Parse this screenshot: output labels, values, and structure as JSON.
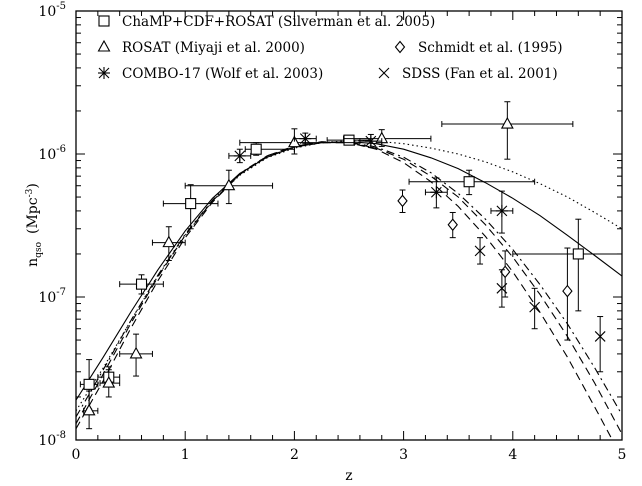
{
  "chart_data": {
    "type": "scatter",
    "title": "",
    "xlabel": "z",
    "ylabel": "n",
    "ylabel_sub": "qso",
    "ylabel_unit": "(Mpc",
    "ylabel_unit_exp": "-3",
    "ylabel_unit_close": ")",
    "x_scale": "linear",
    "y_scale": "log",
    "xlim": [
      0,
      5
    ],
    "ylim": [
      1e-08,
      1e-05
    ],
    "x_ticks": [
      "0",
      "1",
      "2",
      "3",
      "4",
      "5"
    ],
    "y_ticks": [
      {
        "base": "10",
        "exp": "-8",
        "value": 1e-08
      },
      {
        "base": "10",
        "exp": "-7",
        "value": 1e-07
      },
      {
        "base": "10",
        "exp": "-6",
        "value": 1e-06
      },
      {
        "base": "10",
        "exp": "-5",
        "value": 1e-05
      }
    ],
    "grid": false,
    "legend_position": "top",
    "series": [
      {
        "name": "ChaMP+CDF+ROSAT (Silverman et al. 2005)",
        "marker": "square",
        "points": [
          {
            "x": 0.12,
            "y": 2.45e-08,
            "xerr": [
              0.08,
              0.08
            ],
            "yerr": [
              8e-09,
              1.2e-08
            ]
          },
          {
            "x": 0.3,
            "y": 2.75e-08,
            "xerr": [
              0.1,
              0.1
            ],
            "yerr": [
              4e-09,
              5e-09
            ]
          },
          {
            "x": 0.6,
            "y": 1.23e-07,
            "xerr": [
              0.2,
              0.2
            ],
            "yerr": [
              1.8e-08,
              2e-08
            ]
          },
          {
            "x": 1.05,
            "y": 4.5e-07,
            "xerr": [
              0.25,
              0.25
            ],
            "yerr": [
              1.5e-07,
              1.6e-07
            ]
          },
          {
            "x": 1.65,
            "y": 1.08e-06,
            "xerr": [
              0.1,
              0.35
            ],
            "yerr": [
              1e-07,
              1.2e-07
            ]
          },
          {
            "x": 2.5,
            "y": 1.25e-06,
            "xerr": [
              0.2,
              0.2
            ],
            "yerr": [
              5e-08,
              5e-08
            ]
          },
          {
            "x": 3.6,
            "y": 6.4e-07,
            "xerr": [
              0.55,
              0.6
            ],
            "yerr": [
              1.2e-07,
              1.3e-07
            ]
          },
          {
            "x": 4.6,
            "y": 2e-07,
            "xerr": [
              0.6,
              0.4
            ],
            "yerr": [
              1.2e-07,
              1.5e-07
            ]
          }
        ]
      },
      {
        "name": "ROSAT (Miyaji et al. 2000)",
        "marker": "triangle",
        "points": [
          {
            "x": 0.12,
            "y": 1.6e-08,
            "xerr": [
              0.05,
              0.08
            ],
            "yerr": [
              4e-09,
              6e-09
            ]
          },
          {
            "x": 0.3,
            "y": 2.5e-08,
            "xerr": [
              0.08,
              0.1
            ],
            "yerr": [
              5e-09,
              6e-09
            ]
          },
          {
            "x": 0.55,
            "y": 4e-08,
            "xerr": [
              0.15,
              0.15
            ],
            "yerr": [
              1.2e-08,
              1.5e-08
            ]
          },
          {
            "x": 0.85,
            "y": 2.4e-07,
            "xerr": [
              0.15,
              0.15
            ],
            "yerr": [
              6e-08,
              7e-08
            ]
          },
          {
            "x": 1.4,
            "y": 6e-07,
            "xerr": [
              0.4,
              0.4
            ],
            "yerr": [
              1.5e-07,
              1.7e-07
            ]
          },
          {
            "x": 2.0,
            "y": 1.2e-06,
            "xerr": [
              0.5,
              0.55
            ],
            "yerr": [
              2e-07,
              3e-07
            ]
          },
          {
            "x": 2.8,
            "y": 1.28e-06,
            "xerr": [
              0.35,
              0.45
            ],
            "yerr": [
              1.5e-07,
              2e-07
            ]
          },
          {
            "x": 3.95,
            "y": 1.62e-06,
            "xerr": [
              0.6,
              0.6
            ],
            "yerr": [
              7e-07,
              7e-07
            ]
          }
        ]
      },
      {
        "name": "Schmidt et al. (1995)",
        "marker": "diamond",
        "points": [
          {
            "x": 2.99,
            "y": 4.7e-07,
            "xerr": [
              0,
              0
            ],
            "yerr": [
              8e-08,
              9e-08
            ]
          },
          {
            "x": 3.45,
            "y": 3.2e-07,
            "xerr": [
              0,
              0
            ],
            "yerr": [
              6e-08,
              7e-08
            ]
          },
          {
            "x": 3.93,
            "y": 1.5e-07,
            "xerr": [
              0,
              0
            ],
            "yerr": [
              5e-08,
              6e-08
            ]
          },
          {
            "x": 4.5,
            "y": 1.1e-07,
            "xerr": [
              0,
              0
            ],
            "yerr": [
              6e-08,
              1.1e-07
            ]
          }
        ]
      },
      {
        "name": "COMBO-17 (Wolf et al. 2003)",
        "marker": "asterisk",
        "points": [
          {
            "x": 1.5,
            "y": 9.7e-07,
            "xerr": [
              0.1,
              0.1
            ],
            "yerr": [
              1e-07,
              1.1e-07
            ]
          },
          {
            "x": 2.1,
            "y": 1.28e-06,
            "xerr": [
              0.1,
              0.1
            ],
            "yerr": [
              1e-07,
              1.2e-07
            ]
          },
          {
            "x": 2.7,
            "y": 1.23e-06,
            "xerr": [
              0.1,
              0.1
            ],
            "yerr": [
              1.2e-07,
              1.4e-07
            ]
          },
          {
            "x": 3.3,
            "y": 5.4e-07,
            "xerr": [
              0.1,
              0.1
            ],
            "yerr": [
              1.2e-07,
              1.4e-07
            ]
          },
          {
            "x": 3.9,
            "y": 4e-07,
            "xerr": [
              0.1,
              0.1
            ],
            "yerr": [
              1.2e-07,
              1.5e-07
            ]
          }
        ]
      },
      {
        "name": "SDSS (Fan et al. 2001)",
        "marker": "cross",
        "points": [
          {
            "x": 3.7,
            "y": 2.1e-07,
            "xerr": [
              0,
              0
            ],
            "yerr": [
              4e-08,
              5e-08
            ]
          },
          {
            "x": 3.9,
            "y": 1.15e-07,
            "xerr": [
              0,
              0
            ],
            "yerr": [
              3e-08,
              4e-08
            ]
          },
          {
            "x": 4.2,
            "y": 8.5e-08,
            "xerr": [
              0,
              0
            ],
            "yerr": [
              2.5e-08,
              3e-08
            ]
          },
          {
            "x": 4.8,
            "y": 5.3e-08,
            "xerr": [
              0,
              0
            ],
            "yerr": [
              2.3e-08,
              2e-08
            ]
          }
        ]
      }
    ],
    "curves": [
      {
        "style": "solid",
        "points": [
          [
            0,
            1.9e-08
          ],
          [
            0.25,
            3.8e-08
          ],
          [
            0.5,
            7.8e-08
          ],
          [
            0.75,
            1.55e-07
          ],
          [
            1.0,
            2.9e-07
          ],
          [
            1.25,
            4.9e-07
          ],
          [
            1.5,
            7.3e-07
          ],
          [
            1.75,
            9.5e-07
          ],
          [
            2.0,
            1.12e-06
          ],
          [
            2.25,
            1.2e-06
          ],
          [
            2.5,
            1.22e-06
          ],
          [
            2.75,
            1.18e-06
          ],
          [
            3.0,
            1.08e-06
          ],
          [
            3.25,
            9.4e-07
          ],
          [
            3.5,
            7.9e-07
          ],
          [
            3.75,
            6.3e-07
          ],
          [
            4.0,
            4.9e-07
          ],
          [
            4.25,
            3.7e-07
          ],
          [
            4.5,
            2.7e-07
          ],
          [
            4.75,
            1.95e-07
          ],
          [
            5.0,
            1.4e-07
          ]
        ]
      },
      {
        "style": "dotted",
        "points": [
          [
            0,
            1.6e-08
          ],
          [
            0.25,
            3.2e-08
          ],
          [
            0.5,
            6.8e-08
          ],
          [
            0.75,
            1.4e-07
          ],
          [
            1.0,
            2.7e-07
          ],
          [
            1.25,
            4.7e-07
          ],
          [
            1.5,
            7.1e-07
          ],
          [
            1.75,
            9.4e-07
          ],
          [
            2.0,
            1.1e-06
          ],
          [
            2.25,
            1.2e-06
          ],
          [
            2.5,
            1.24e-06
          ],
          [
            2.75,
            1.23e-06
          ],
          [
            3.0,
            1.18e-06
          ],
          [
            3.25,
            1.1e-06
          ],
          [
            3.5,
            1e-06
          ],
          [
            3.75,
            8.8e-07
          ],
          [
            4.0,
            7.5e-07
          ],
          [
            4.25,
            6.2e-07
          ],
          [
            4.5,
            5e-07
          ],
          [
            4.75,
            3.9e-07
          ],
          [
            5.0,
            3e-07
          ]
        ]
      },
      {
        "style": "dashed",
        "points": [
          [
            0,
            1.2e-08
          ],
          [
            0.25,
            2.6e-08
          ],
          [
            0.5,
            6e-08
          ],
          [
            0.75,
            1.3e-07
          ],
          [
            1.0,
            2.6e-07
          ],
          [
            1.25,
            4.6e-07
          ],
          [
            1.5,
            7.2e-07
          ],
          [
            1.75,
            9.7e-07
          ],
          [
            2.0,
            1.14e-06
          ],
          [
            2.25,
            1.22e-06
          ],
          [
            2.5,
            1.2e-06
          ],
          [
            2.75,
            1.08e-06
          ],
          [
            3.0,
            8.7e-07
          ],
          [
            3.25,
            6.4e-07
          ],
          [
            3.5,
            4.3e-07
          ],
          [
            3.75,
            2.65e-07
          ],
          [
            4.0,
            1.5e-07
          ],
          [
            4.25,
            7.8e-08
          ],
          [
            4.5,
            3.8e-08
          ],
          [
            4.75,
            1.7e-08
          ],
          [
            5.0,
            7.5e-09
          ]
        ]
      },
      {
        "style": "dashdot",
        "points": [
          [
            0,
            1.45e-08
          ],
          [
            0.25,
            3.1e-08
          ],
          [
            0.5,
            6.8e-08
          ],
          [
            0.75,
            1.42e-07
          ],
          [
            1.0,
            2.75e-07
          ],
          [
            1.25,
            4.75e-07
          ],
          [
            1.5,
            7.3e-07
          ],
          [
            1.75,
            9.7e-07
          ],
          [
            2.0,
            1.13e-06
          ],
          [
            2.25,
            1.21e-06
          ],
          [
            2.5,
            1.21e-06
          ],
          [
            2.75,
            1.12e-06
          ],
          [
            3.0,
            9.5e-07
          ],
          [
            3.25,
            7.4e-07
          ],
          [
            3.5,
            5.3e-07
          ],
          [
            3.75,
            3.5e-07
          ],
          [
            4.0,
            2.15e-07
          ],
          [
            4.25,
            1.22e-07
          ],
          [
            4.5,
            6.5e-08
          ],
          [
            4.75,
            3.2e-08
          ],
          [
            5.0,
            1.5e-08
          ]
        ]
      },
      {
        "style": "dashed",
        "points": [
          [
            0,
            1.3e-08
          ],
          [
            0.25,
            2.9e-08
          ],
          [
            0.5,
            6.5e-08
          ],
          [
            0.75,
            1.38e-07
          ],
          [
            1.0,
            2.7e-07
          ],
          [
            1.25,
            4.7e-07
          ],
          [
            1.5,
            7.2e-07
          ],
          [
            1.75,
            9.6e-07
          ],
          [
            2.0,
            1.12e-06
          ],
          [
            2.25,
            1.2e-06
          ],
          [
            2.5,
            1.2e-06
          ],
          [
            2.75,
            1.1e-06
          ],
          [
            3.0,
            9.2e-07
          ],
          [
            3.25,
            7e-07
          ],
          [
            3.5,
            5e-07
          ],
          [
            3.75,
            3.2e-07
          ],
          [
            4.0,
            1.9e-07
          ],
          [
            4.25,
            1.04e-07
          ],
          [
            4.5,
            5.3e-08
          ],
          [
            4.75,
            2.5e-08
          ],
          [
            5.0,
            1.1e-08
          ]
        ]
      }
    ]
  }
}
